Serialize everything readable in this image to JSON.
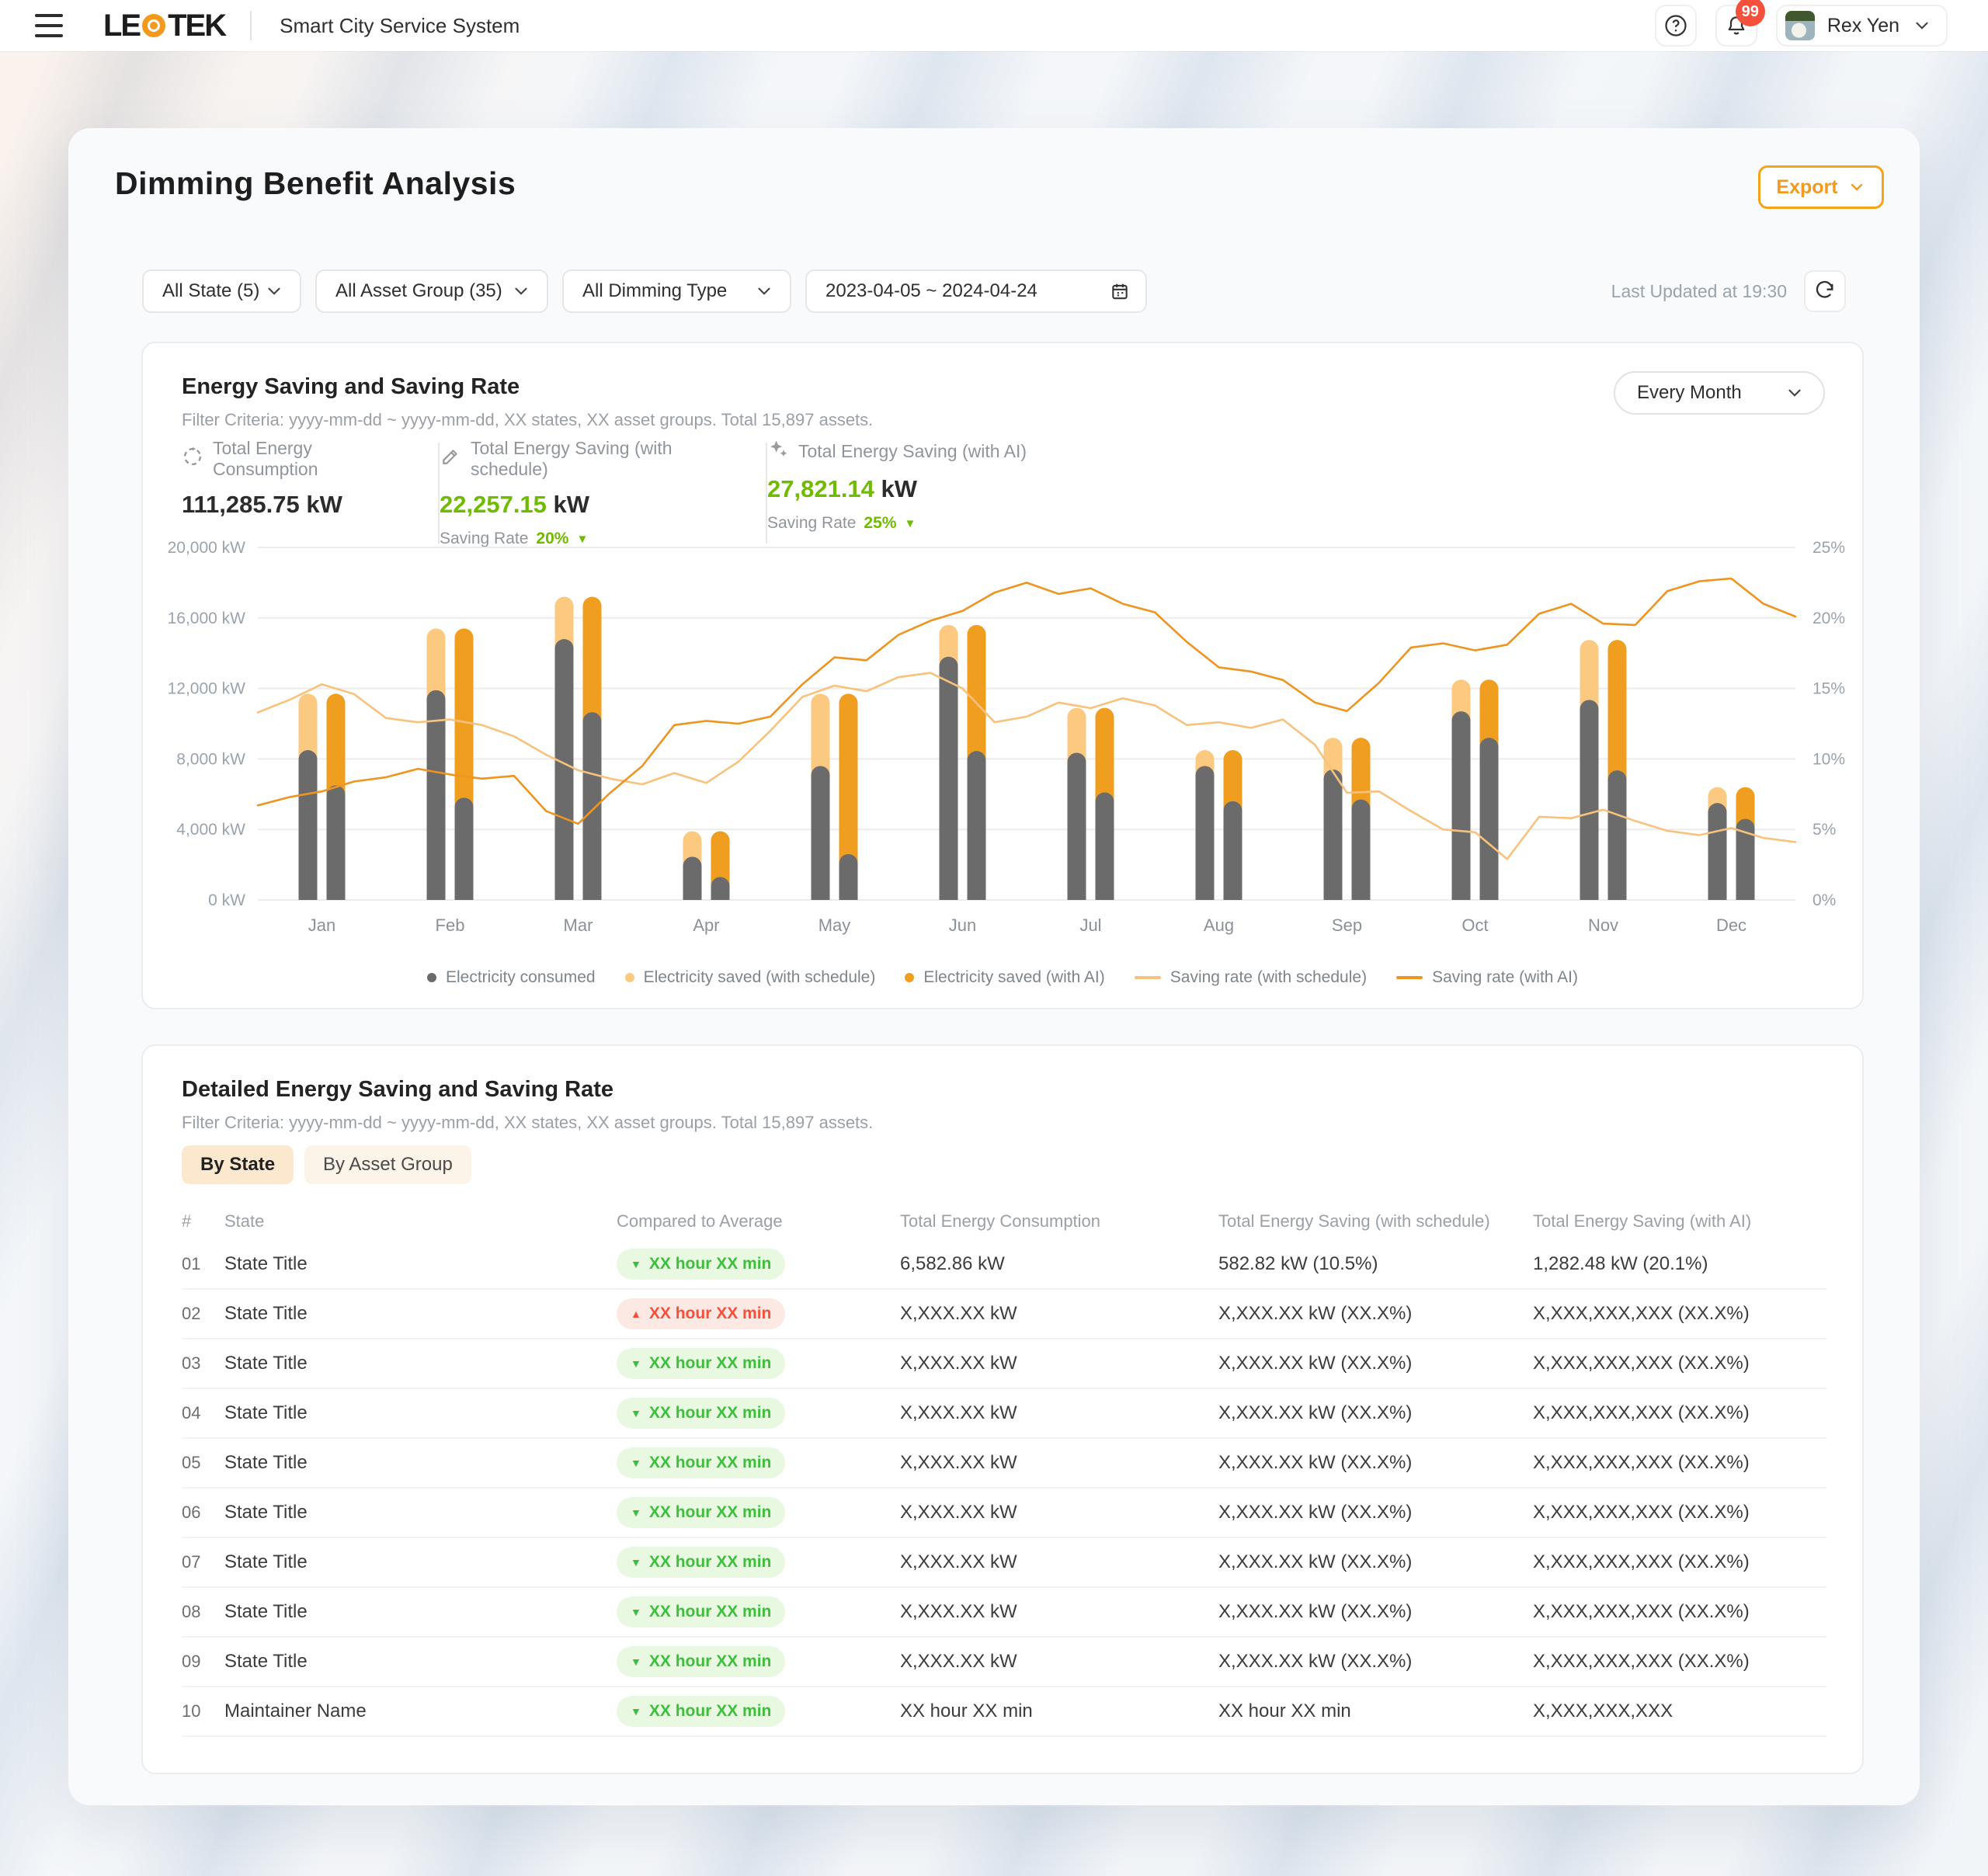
{
  "header": {
    "brand_left": "LE",
    "brand_right": "TEK",
    "app_title": "Smart City Service System",
    "notifications_badge": "99",
    "user_name": "Rex Yen"
  },
  "page": {
    "title": "Dimming Benefit Analysis",
    "export_label": "Export",
    "last_updated": "Last Updated at 19:30"
  },
  "filters": [
    {
      "label": "All State (5)",
      "type": "select"
    },
    {
      "label": "All Asset Group (35)",
      "type": "select"
    },
    {
      "label": "All Dimming Type",
      "type": "select"
    },
    {
      "label": "2023-04-05 ~ 2024-04-24",
      "type": "daterange"
    }
  ],
  "chart_section": {
    "title": "Energy Saving and Saving Rate",
    "criteria": "Filter Criteria: yyyy-mm-dd ~ yyyy-mm-dd, XX states, XX asset groups. Total 15,897 assets.",
    "interval_selector": "Every Month",
    "stats": [
      {
        "icon": "recycle-icon",
        "label": "Total Energy Consumption",
        "value": "111,285.75",
        "unit": "kW",
        "green": false
      },
      {
        "icon": "pencil-icon",
        "label": "Total Energy Saving (with schedule)",
        "value": "22,257.15",
        "unit": "kW",
        "green": true,
        "rate_label": "Saving Rate",
        "rate": "20%"
      },
      {
        "icon": "sparkles-icon",
        "label": "Total Energy Saving (with AI)",
        "value": "27,821.14",
        "unit": "kW",
        "green": true,
        "rate_label": "Saving Rate",
        "rate": "25%"
      }
    ],
    "legend": [
      {
        "swatch": "dot",
        "color": "#6B6B6B",
        "label": "Electricity consumed"
      },
      {
        "swatch": "dot",
        "color": "#FBCA80",
        "label": "Electricity saved (with schedule)"
      },
      {
        "swatch": "dot",
        "color": "#EF9E20",
        "label": "Electricity saved (with AI)"
      },
      {
        "swatch": "line",
        "color": "#F7C27D",
        "label": "Saving rate (with schedule)"
      },
      {
        "swatch": "line",
        "color": "#EE9420",
        "label": "Saving rate (with AI)"
      }
    ]
  },
  "chart_data": {
    "type": "bar+line",
    "categories": [
      "Jan",
      "Feb",
      "Mar",
      "Apr",
      "May",
      "Jun",
      "Jul",
      "Aug",
      "Sep",
      "Oct",
      "Nov",
      "Dec"
    ],
    "y_left_ticks": [
      "0 kW",
      "4,000 kW",
      "8,000 kW",
      "12,000 kW",
      "16,000 kW",
      "20,000 kW"
    ],
    "y_right_ticks": [
      "0%",
      "5%",
      "10%",
      "15%",
      "20%",
      "25%"
    ],
    "y_left_max_kw": 20000,
    "y_right_max_pct": 25,
    "bars": [
      {
        "month": "Jan",
        "consumed_with_schedule": 8500,
        "saved_with_schedule": 3200,
        "consumed_with_ai": 6500,
        "saved_with_ai": 5200
      },
      {
        "month": "Feb",
        "consumed_with_schedule": 11900,
        "saved_with_schedule": 3500,
        "consumed_with_ai": 5800,
        "saved_with_ai": 9600
      },
      {
        "month": "Mar",
        "consumed_with_schedule": 14800,
        "saved_with_schedule": 2400,
        "consumed_with_ai": 10650,
        "saved_with_ai": 6550
      },
      {
        "month": "Apr",
        "consumed_with_schedule": 2450,
        "saved_with_schedule": 1450,
        "consumed_with_ai": 1300,
        "saved_with_ai": 2600
      },
      {
        "month": "May",
        "consumed_with_schedule": 7600,
        "saved_with_schedule": 4100,
        "consumed_with_ai": 2600,
        "saved_with_ai": 9100
      },
      {
        "month": "Jun",
        "consumed_with_schedule": 13800,
        "saved_with_schedule": 1800,
        "consumed_with_ai": 8450,
        "saved_with_ai": 7150
      },
      {
        "month": "Jul",
        "consumed_with_schedule": 8350,
        "saved_with_schedule": 2550,
        "consumed_with_ai": 6100,
        "saved_with_ai": 4800
      },
      {
        "month": "Aug",
        "consumed_with_schedule": 7600,
        "saved_with_schedule": 900,
        "consumed_with_ai": 5600,
        "saved_with_ai": 2900
      },
      {
        "month": "Sep",
        "consumed_with_schedule": 7400,
        "saved_with_schedule": 1800,
        "consumed_with_ai": 5700,
        "saved_with_ai": 3500
      },
      {
        "month": "Oct",
        "consumed_with_schedule": 10700,
        "saved_with_schedule": 1800,
        "consumed_with_ai": 9200,
        "saved_with_ai": 3300
      },
      {
        "month": "Nov",
        "consumed_with_schedule": 11350,
        "saved_with_schedule": 3400,
        "consumed_with_ai": 7350,
        "saved_with_ai": 7400
      },
      {
        "month": "Dec",
        "consumed_with_schedule": 5500,
        "saved_with_schedule": 900,
        "consumed_with_ai": 4600,
        "saved_with_ai": 1800
      }
    ],
    "lines": {
      "saving_rate_with_schedule": [
        13.3,
        14.2,
        15.3,
        14.6,
        12.9,
        12.6,
        12.8,
        12.4,
        11.6,
        10.3,
        9.2,
        8.6,
        8.2,
        9.0,
        8.3,
        9.8,
        12.0,
        14.4,
        15.2,
        14.8,
        15.8,
        16.1,
        15.0,
        12.6,
        13.0,
        14.0,
        13.6,
        14.3,
        13.8,
        12.4,
        12.6,
        12.2,
        12.8,
        11.0,
        7.6,
        7.7,
        6.3,
        5.0,
        4.8,
        2.9,
        5.9,
        5.8,
        6.4,
        5.6,
        4.9,
        4.6,
        5.1,
        4.4,
        4.1
      ],
      "saving_rate_with_ai": [
        6.7,
        7.3,
        7.7,
        8.4,
        8.7,
        9.3,
        8.9,
        8.6,
        8.8,
        6.3,
        5.4,
        7.6,
        9.5,
        12.4,
        12.7,
        12.5,
        13.0,
        15.3,
        17.2,
        17.0,
        18.8,
        19.8,
        20.5,
        21.8,
        22.5,
        21.7,
        22.1,
        21.0,
        20.4,
        18.3,
        16.5,
        16.2,
        15.6,
        14.0,
        13.4,
        15.4,
        17.9,
        18.2,
        17.7,
        18.1,
        20.3,
        21.0,
        19.6,
        19.5,
        21.9,
        22.6,
        22.8,
        21.0,
        20.1
      ]
    }
  },
  "table_section": {
    "title": "Detailed Energy Saving and Saving Rate",
    "criteria": "Filter Criteria: yyyy-mm-dd ~ yyyy-mm-dd, XX states, XX asset groups. Total 15,897 assets.",
    "tabs": [
      {
        "label": "By State",
        "active": true
      },
      {
        "label": "By Asset Group",
        "active": false
      }
    ],
    "columns": [
      "#",
      "State",
      "Compared to Average",
      "Total Energy Consumption",
      "Total Energy Saving (with schedule)",
      "Total Energy Saving (with AI)"
    ],
    "rows": [
      {
        "num": "01",
        "name": "State Title",
        "trend": "down",
        "trend_text": "XX hour XX min",
        "consumption": "6,582.86 kW",
        "saving_schedule": "582.82 kW (10.5%)",
        "saving_ai": "1,282.48 kW (20.1%)"
      },
      {
        "num": "02",
        "name": "State Title",
        "trend": "up",
        "trend_text": "XX hour XX min",
        "consumption": "X,XXX.XX kW",
        "saving_schedule": "X,XXX.XX kW (XX.X%)",
        "saving_ai": "X,XXX,XXX,XXX (XX.X%)"
      },
      {
        "num": "03",
        "name": "State Title",
        "trend": "down",
        "trend_text": "XX hour XX min",
        "consumption": "X,XXX.XX kW",
        "saving_schedule": "X,XXX.XX kW (XX.X%)",
        "saving_ai": "X,XXX,XXX,XXX (XX.X%)"
      },
      {
        "num": "04",
        "name": "State Title",
        "trend": "down",
        "trend_text": "XX hour XX min",
        "consumption": "X,XXX.XX kW",
        "saving_schedule": "X,XXX.XX kW (XX.X%)",
        "saving_ai": "X,XXX,XXX,XXX (XX.X%)"
      },
      {
        "num": "05",
        "name": "State Title",
        "trend": "down",
        "trend_text": "XX hour XX min",
        "consumption": "X,XXX.XX kW",
        "saving_schedule": "X,XXX.XX kW (XX.X%)",
        "saving_ai": "X,XXX,XXX,XXX (XX.X%)"
      },
      {
        "num": "06",
        "name": "State Title",
        "trend": "down",
        "trend_text": "XX hour XX min",
        "consumption": "X,XXX.XX kW",
        "saving_schedule": "X,XXX.XX kW (XX.X%)",
        "saving_ai": "X,XXX,XXX,XXX (XX.X%)"
      },
      {
        "num": "07",
        "name": "State Title",
        "trend": "down",
        "trend_text": "XX hour XX min",
        "consumption": "X,XXX.XX kW",
        "saving_schedule": "X,XXX.XX kW (XX.X%)",
        "saving_ai": "X,XXX,XXX,XXX (XX.X%)"
      },
      {
        "num": "08",
        "name": "State Title",
        "trend": "down",
        "trend_text": "XX hour XX min",
        "consumption": "X,XXX.XX kW",
        "saving_schedule": "X,XXX.XX kW (XX.X%)",
        "saving_ai": "X,XXX,XXX,XXX (XX.X%)"
      },
      {
        "num": "09",
        "name": "State Title",
        "trend": "down",
        "trend_text": "XX hour XX min",
        "consumption": "X,XXX.XX kW",
        "saving_schedule": "X,XXX.XX kW (XX.X%)",
        "saving_ai": "X,XXX,XXX,XXX (XX.X%)"
      },
      {
        "num": "10",
        "name": "Maintainer Name",
        "trend": "down",
        "trend_text": "XX hour XX min",
        "consumption": "XX hour XX min",
        "saving_schedule": "XX hour XX min",
        "saving_ai": "X,XXX,XXX,XXX"
      }
    ]
  },
  "colors": {
    "accent_orange": "#F39A1E",
    "bar_gray": "#6B6B6B",
    "bar_light_orange": "#FBCA80",
    "bar_dark_orange": "#EF9E20",
    "line_light": "#F7C27D",
    "line_dark": "#EE9420",
    "green": "#6FBB00",
    "grid": "#ececec",
    "axis_text": "#9aa3ab"
  }
}
